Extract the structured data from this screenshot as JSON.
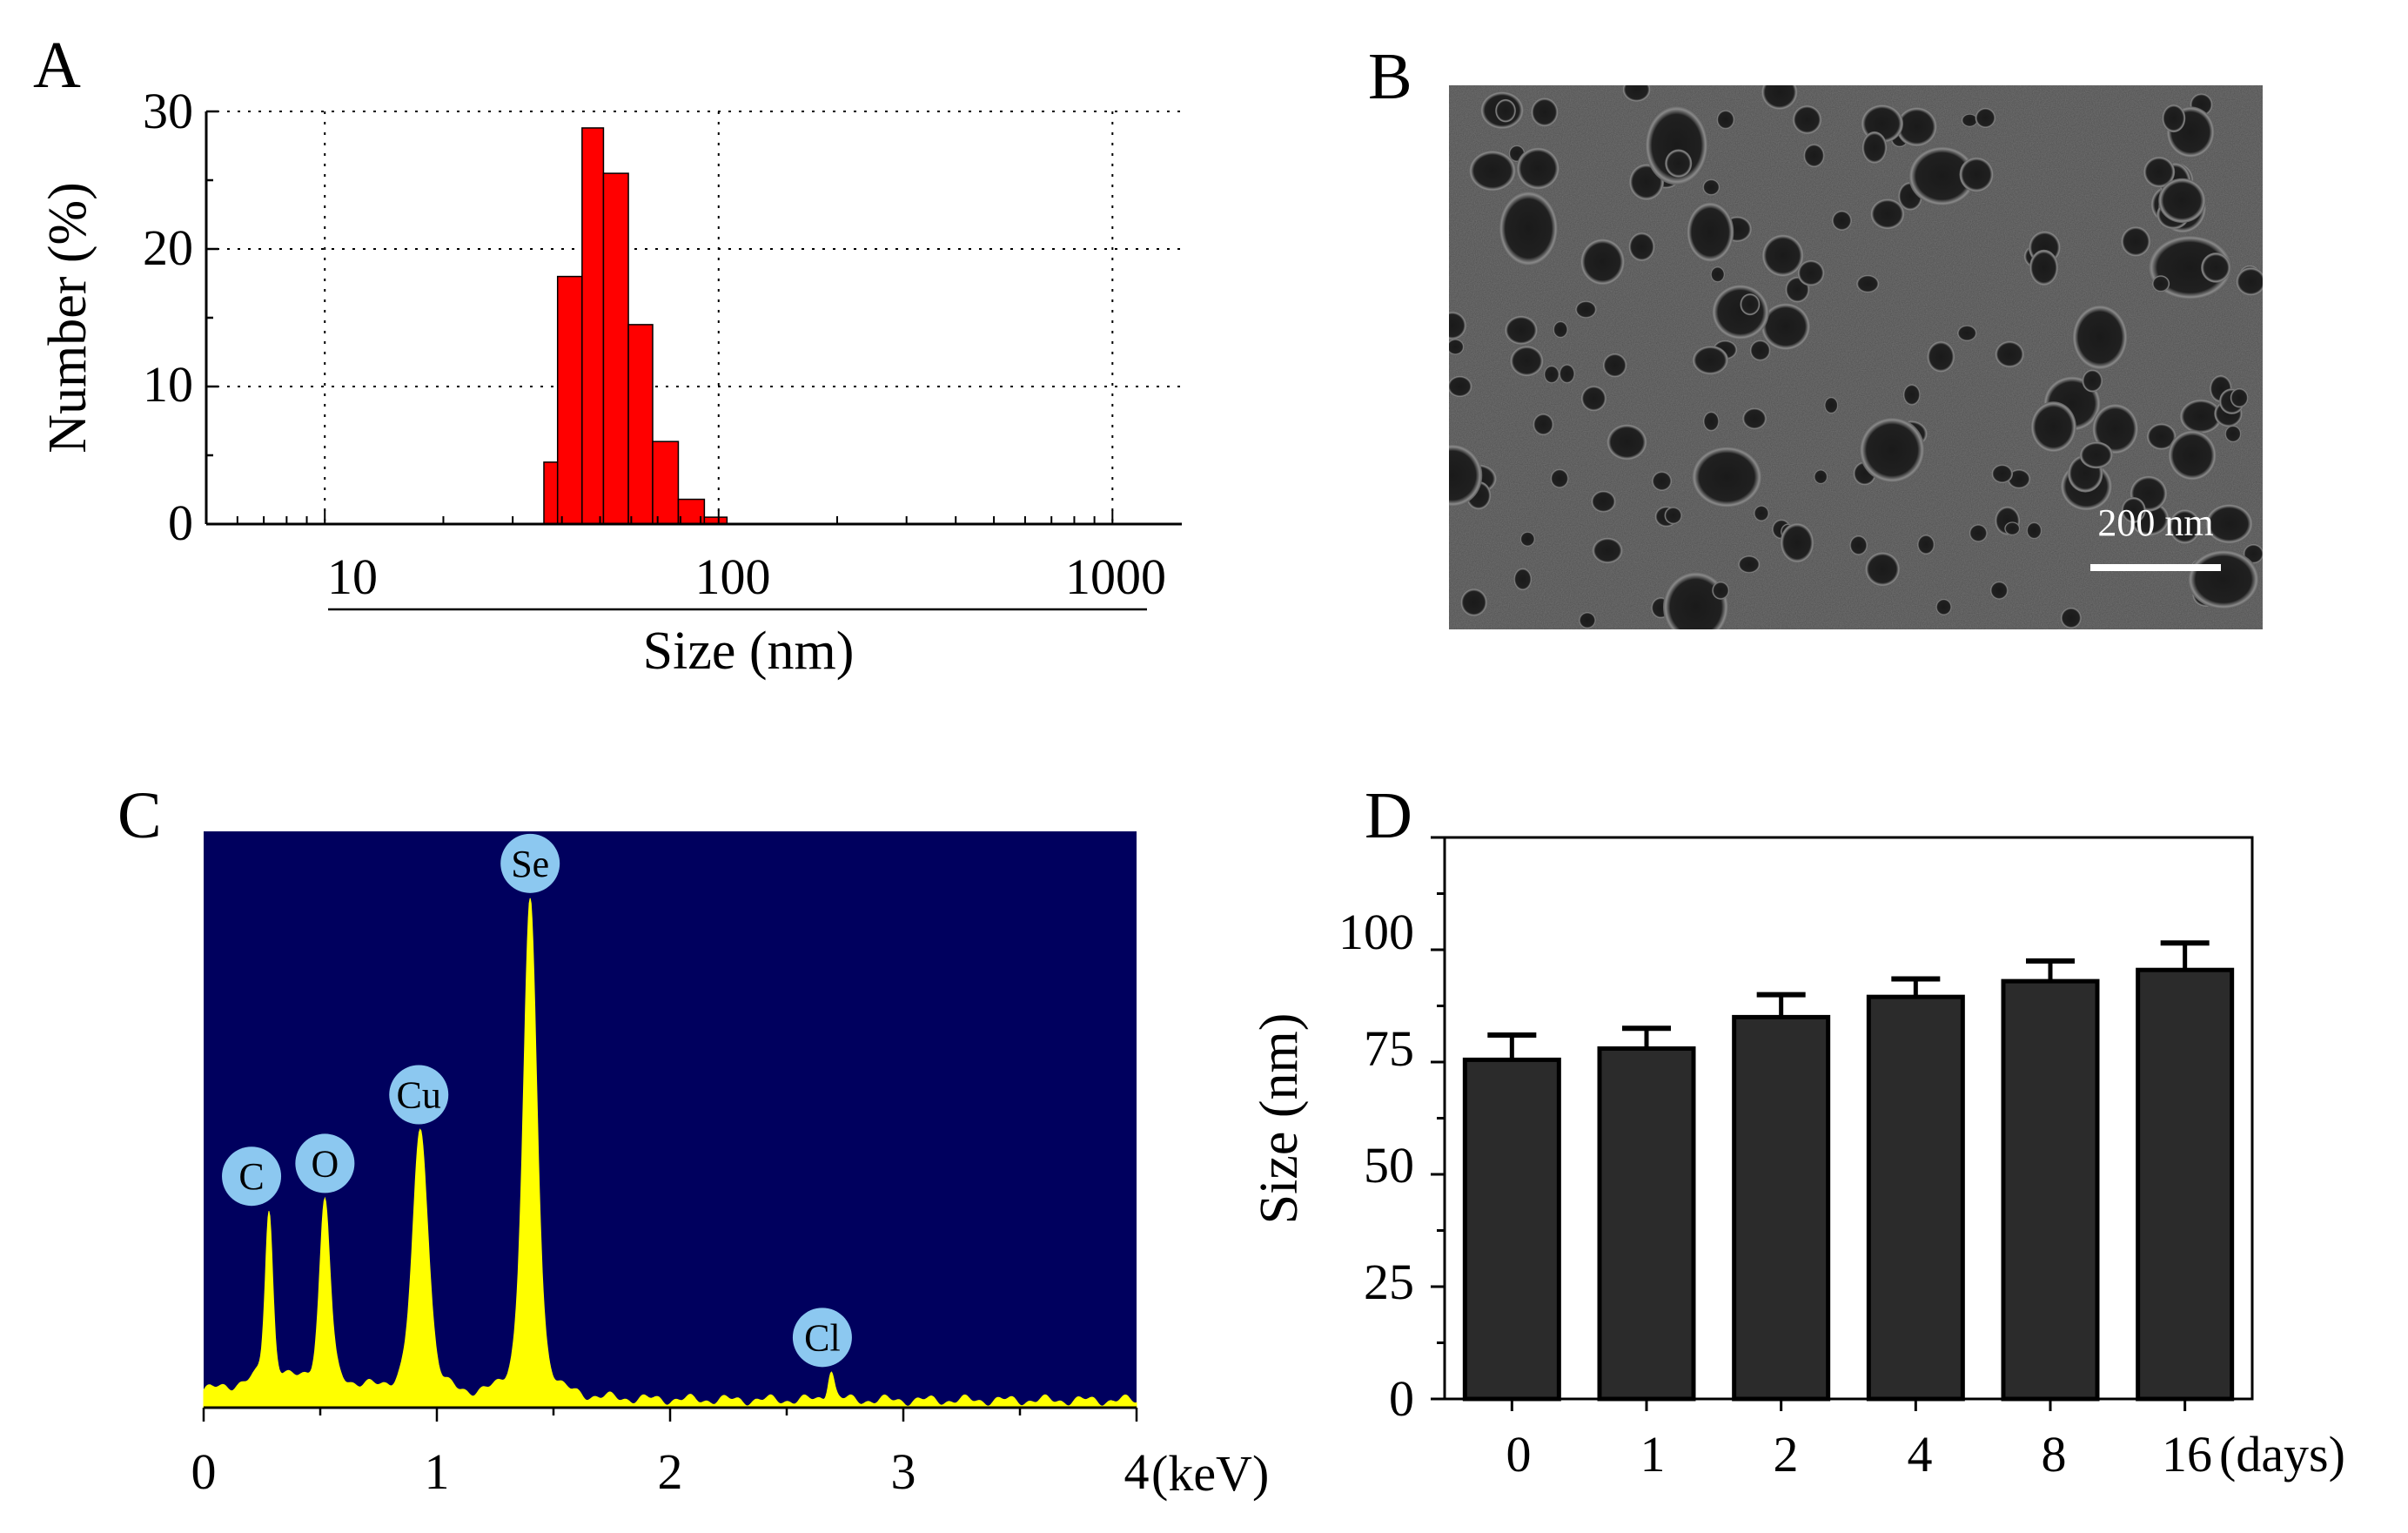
{
  "panels": {
    "A": {
      "label": "A"
    },
    "B": {
      "label": "B"
    },
    "C": {
      "label": "C"
    },
    "D": {
      "label": "D"
    }
  },
  "sem": {
    "scale_bar_label": "200 nm"
  },
  "colors": {
    "histogram_bar": "#ff0000",
    "eds_background": "#00005e",
    "eds_spectrum": "#ffff00",
    "eds_marker": "#8cc8f0",
    "d_bar": "#2b2b2b"
  },
  "chart_data": [
    {
      "panel": "A",
      "type": "bar",
      "xscale": "log",
      "xlim": [
        5,
        1500
      ],
      "ylim": [
        0,
        30
      ],
      "xlabel": "Size (nm)",
      "ylabel": "Number (%)",
      "x_ticks": [
        "10",
        "100",
        "1000"
      ],
      "y_ticks": [
        "0",
        "10",
        "20",
        "30"
      ],
      "grid": true,
      "bins": [
        {
          "x0": 36,
          "x1": 39,
          "value": 4.5
        },
        {
          "x0": 39,
          "x1": 45,
          "value": 18
        },
        {
          "x0": 45,
          "x1": 51,
          "value": 28.8
        },
        {
          "x0": 51,
          "x1": 59,
          "value": 25.5
        },
        {
          "x0": 59,
          "x1": 68,
          "value": 14.5
        },
        {
          "x0": 68,
          "x1": 79,
          "value": 6
        },
        {
          "x0": 79,
          "x1": 92,
          "value": 1.8
        },
        {
          "x0": 92,
          "x1": 105,
          "value": 0.5
        }
      ]
    },
    {
      "panel": "C",
      "type": "line",
      "xlim": [
        0,
        4
      ],
      "xlabel": "(keV)",
      "x_ticks": [
        "0",
        "1",
        "2",
        "3",
        "4"
      ],
      "peaks": [
        {
          "element": "C",
          "x": 0.28,
          "height": 0.3
        },
        {
          "element": "O",
          "x": 0.52,
          "height": 0.32
        },
        {
          "element": "Cu",
          "x": 0.93,
          "height": 0.46
        },
        {
          "element": "Se",
          "x": 1.4,
          "height": 0.86
        },
        {
          "element": "Cl",
          "x": 2.69,
          "height": 0.055
        }
      ]
    },
    {
      "panel": "D",
      "type": "bar",
      "categories": [
        "0",
        "1",
        "2",
        "4",
        "8",
        "16"
      ],
      "values": [
        75.5,
        78,
        85,
        89.5,
        93,
        95.5
      ],
      "errors": [
        5.5,
        4.5,
        5,
        4,
        4.5,
        6
      ],
      "ylim": [
        0,
        125
      ],
      "ylabel": "Size (nm)",
      "xlabel_suffix": "(days)",
      "y_ticks": [
        "0",
        "25",
        "50",
        "75",
        "100"
      ]
    }
  ]
}
